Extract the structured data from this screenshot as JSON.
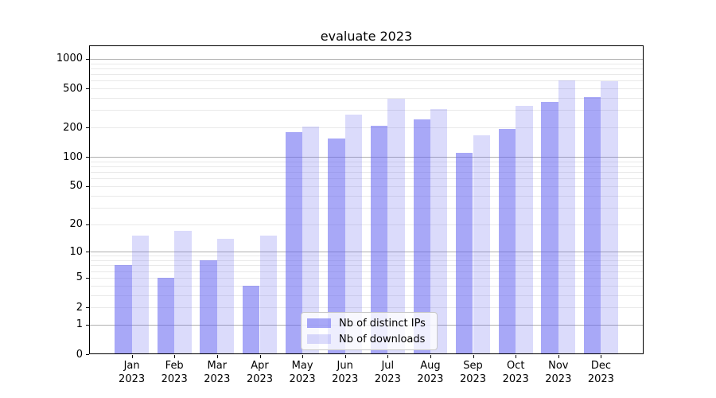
{
  "figure": {
    "title": "evaluate 2023"
  },
  "chart_data": {
    "type": "bar",
    "title": "evaluate 2023",
    "x": {
      "months": [
        "Jan",
        "Feb",
        "Mar",
        "Apr",
        "May",
        "Jun",
        "Jul",
        "Aug",
        "Sep",
        "Oct",
        "Nov",
        "Dec"
      ],
      "year": "2023"
    },
    "series": [
      {
        "name": "Nb of distinct IPs",
        "fill": "rgba(100,100,240,0.56)",
        "values": [
          7,
          5,
          8,
          4,
          180,
          155,
          210,
          240,
          110,
          195,
          365,
          405
        ]
      },
      {
        "name": "Nb of downloads",
        "fill": "rgba(100,100,240,0.235)",
        "values": [
          15,
          17,
          14,
          15,
          205,
          270,
          390,
          310,
          165,
          330,
          600,
          590
        ]
      }
    ],
    "yscale": "log1p",
    "y_ticks": [
      0,
      1,
      2,
      5,
      10,
      20,
      50,
      100,
      200,
      500,
      1000
    ],
    "ylim": [
      0,
      1370
    ],
    "grid": {
      "enabled": true,
      "major_values": [
        1,
        10,
        100,
        1000
      ],
      "major_color": "#b0b0b0",
      "minor_color": "#e9e9e9"
    },
    "legend_position": "lower center",
    "xlabel": "",
    "ylabel": ""
  }
}
